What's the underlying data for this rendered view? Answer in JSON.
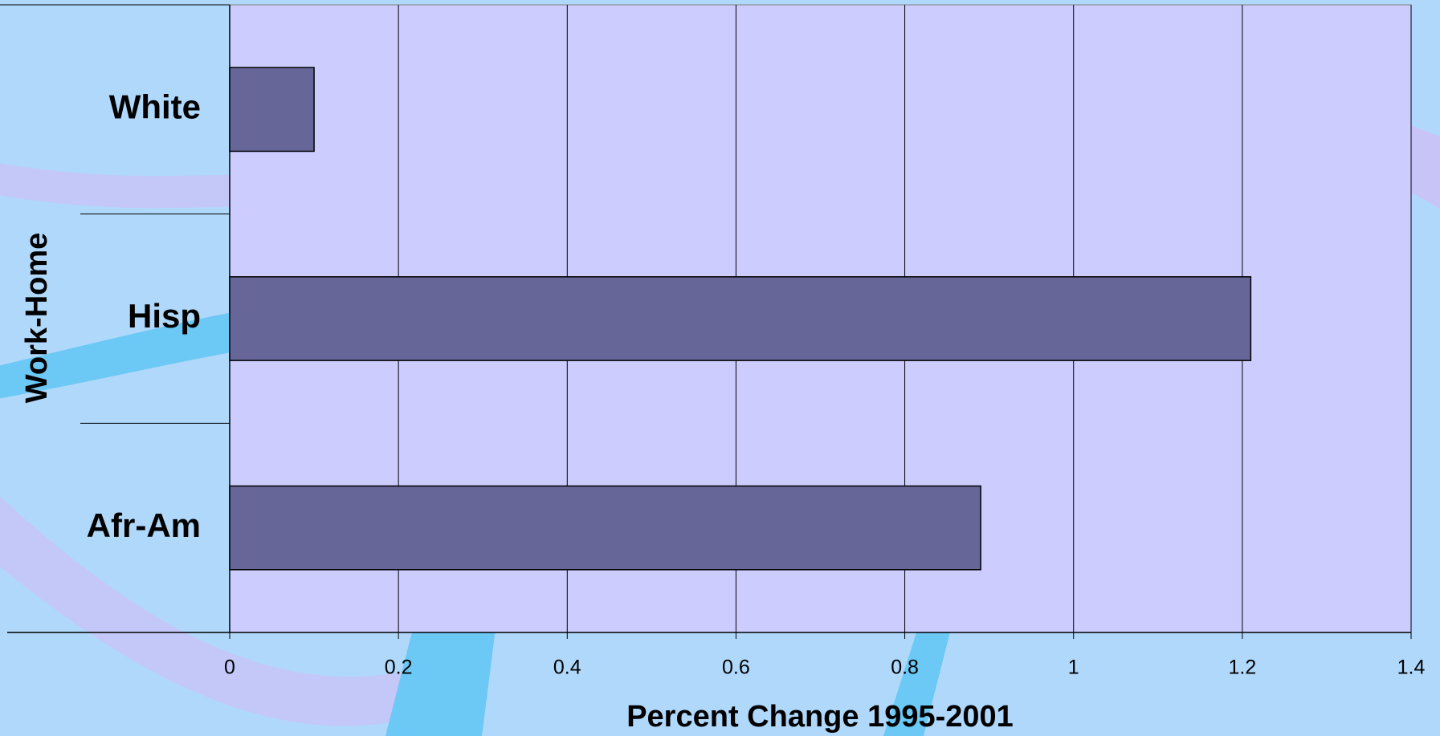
{
  "chart_data": {
    "type": "bar",
    "orientation": "horizontal",
    "categories": [
      "White",
      "Hisp",
      "Afr-Am"
    ],
    "values": [
      0.1,
      1.21,
      0.89
    ],
    "color": "#666699",
    "xlabel": "Percent Change 1995-2001",
    "ylabel": "Work-Home",
    "xlim": [
      0,
      1.4
    ],
    "xticks": [
      0,
      0.2,
      0.4,
      0.6,
      0.8,
      1,
      1.2,
      1.4
    ],
    "grid": true
  }
}
